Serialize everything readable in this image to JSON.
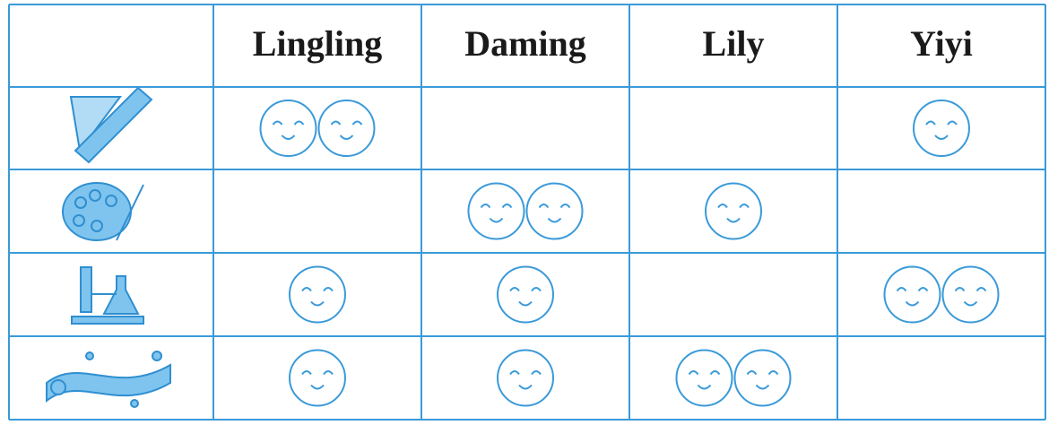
{
  "table": {
    "header": [
      "Lingling",
      "Daming",
      "Lily",
      "Yiyi"
    ],
    "rows": [
      [
        2,
        0,
        0,
        1
      ],
      [
        0,
        2,
        1,
        0
      ],
      [
        1,
        1,
        0,
        2
      ],
      [
        1,
        1,
        2,
        0
      ]
    ]
  }
}
